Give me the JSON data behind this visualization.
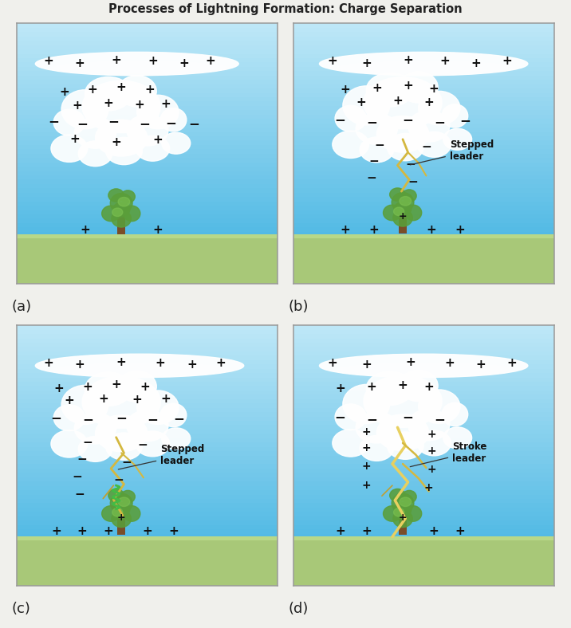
{
  "title": "Processes of Lightning Formation: Charge Separation",
  "panel_labels": [
    "(a)",
    "(b)",
    "(c)",
    "(d)"
  ],
  "sky_top_color": "#3ab0e0",
  "sky_bottom_color": "#c0e8f8",
  "ground_color": "#a8c878",
  "ground_highlight": "#b8d888",
  "cloud_white": "#ffffff",
  "cloud_shadow": "#d8e4ee",
  "anvil_color": "#f0f4f8",
  "plus_color": "#111111",
  "minus_color": "#111111",
  "lightning_color": "#d4b840",
  "lightning_bright": "#e8d060",
  "wavy_color": "#44bb44",
  "label_color": "#222222",
  "line_color": "#333333",
  "panel_border": "#999999"
}
